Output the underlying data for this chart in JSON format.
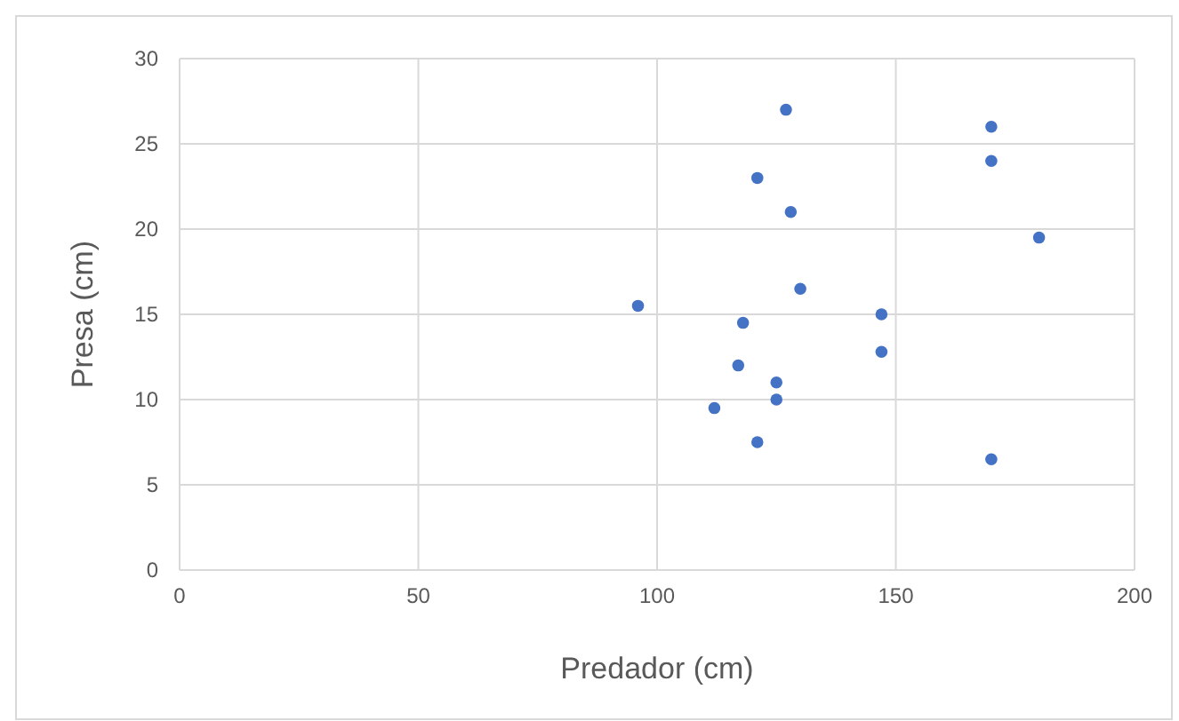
{
  "chart_data": {
    "type": "scatter",
    "xlabel": "Predador (cm)",
    "ylabel": "Presa (cm)",
    "x": [
      127,
      121,
      128,
      170,
      170,
      180,
      96,
      130,
      118,
      147,
      147,
      117,
      125,
      125,
      112,
      121,
      170
    ],
    "series": [
      {
        "color": "#4472c4",
        "values": [
          27,
          23,
          21,
          26,
          24,
          19.5,
          15.5,
          16.5,
          14.5,
          15,
          12.8,
          12,
          11,
          10,
          9.5,
          7.5,
          6.5
        ]
      }
    ],
    "xlim": [
      0,
      200
    ],
    "xticks": [
      0,
      50,
      100,
      150,
      200
    ],
    "ylim": [
      0,
      30
    ],
    "yticks": [
      0,
      5,
      10,
      15,
      20,
      25,
      30
    ],
    "grid": true,
    "marker": "circle"
  }
}
